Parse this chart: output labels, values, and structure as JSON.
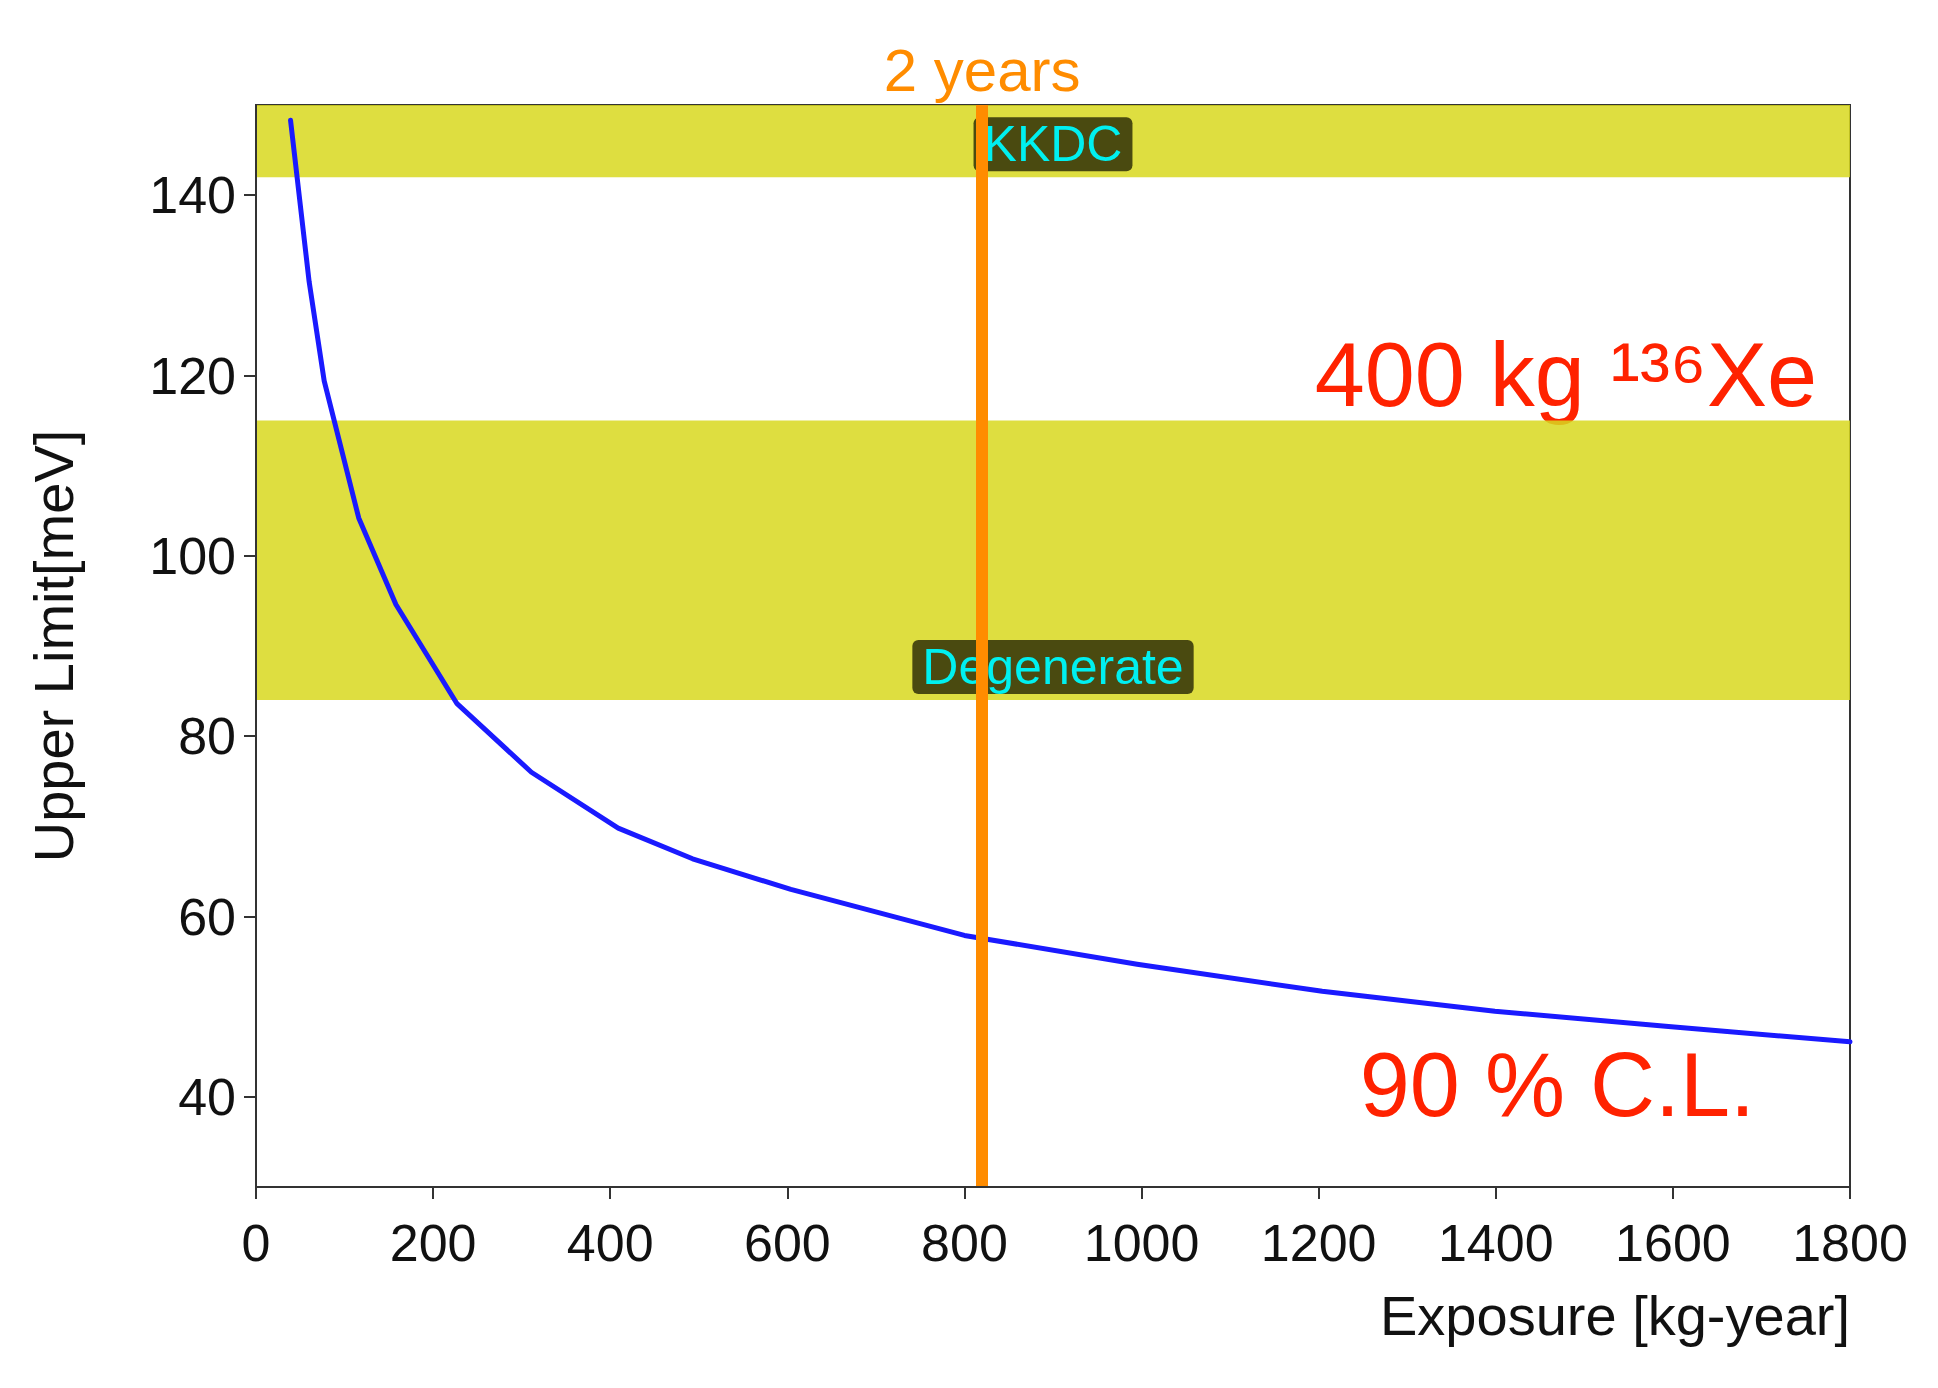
{
  "chart_data": {
    "type": "line",
    "xlabel": "Exposure [kg-year]",
    "ylabel": "Upper Limit[meV]",
    "series": [
      {
        "color": "#1a1aff",
        "x": [
          39,
          60,
          77,
          116,
          158,
          227,
          311,
          409,
          493,
          604,
          800,
          995,
          1204,
          1399,
          1595,
          1800
        ],
        "values": [
          148.3,
          130.4,
          119.4,
          104.2,
          94.6,
          83.6,
          76,
          69.8,
          66.4,
          63,
          57.9,
          54.7,
          51.7,
          49.5,
          47.8,
          46.1
        ]
      }
    ],
    "xlim": [
      0,
      1800
    ],
    "xticks": [
      0,
      200,
      400,
      600,
      800,
      1000,
      1200,
      1400,
      1600,
      1800
    ],
    "ylim": [
      30,
      150
    ],
    "yticks": [
      40,
      60,
      80,
      100,
      120,
      140
    ],
    "grid": false,
    "marker": "none",
    "line_style": "solid",
    "bands": [
      {
        "axis": "y",
        "from": 142,
        "to": 150,
        "label": "KKDC",
        "color": "#d8d81e"
      },
      {
        "axis": "y",
        "from": 84,
        "to": 115,
        "label": "Degenerate",
        "color": "#d8d81e"
      }
    ],
    "ref_lines": [
      {
        "axis": "x",
        "value": 820,
        "label": "2 years",
        "color": "#ff8c00",
        "line_style": "solid"
      }
    ],
    "annotations": [
      "400 kg ¹³⁶Xe",
      "90 % C.L."
    ]
  }
}
